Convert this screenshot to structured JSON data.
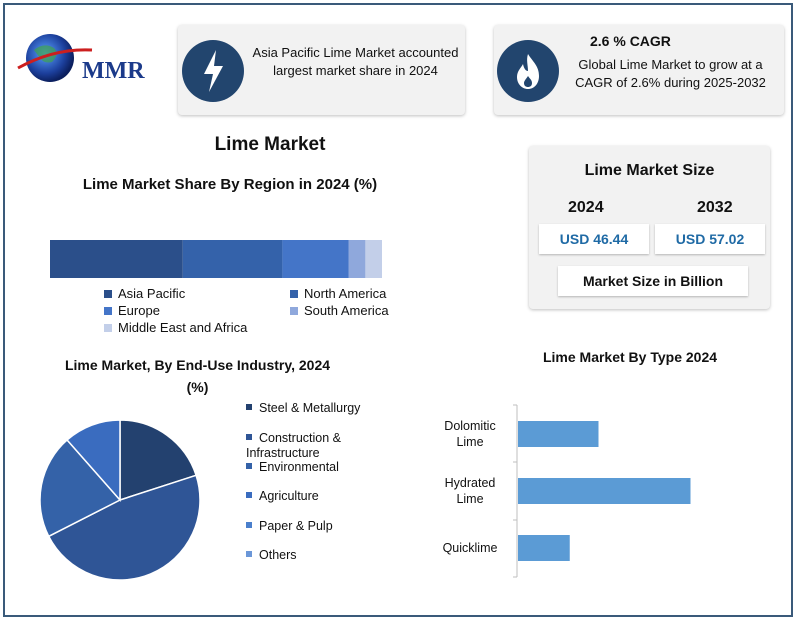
{
  "logo": {
    "text": "MMR"
  },
  "header": {
    "left_text": "Asia Pacific Lime Market accounted largest market share in 2024",
    "right_title": "2.6 % CAGR",
    "right_text": "Global Lime  Market to grow at a CAGR of 2.6% during 2025-2032",
    "left_icon": "lightning-bolt-icon",
    "right_icon": "flame-icon"
  },
  "main_title": "Lime Market",
  "market_size": {
    "title": "Lime Market Size",
    "year1": "2024",
    "year2": "2032",
    "value1": "USD 46.44",
    "value2": "USD 57.02",
    "unit_label": "Market Size in Billion",
    "accent": "#1f6aa5"
  },
  "chart_data": [
    {
      "type": "bar",
      "orientation": "horizontal-stacked",
      "title": "Lime Market Share By Region in 2024 (%)",
      "series": [
        {
          "name": "Asia Pacific",
          "values": [
            40
          ],
          "color": "#2b4f8a"
        },
        {
          "name": "North America",
          "values": [
            30
          ],
          "color": "#3462aa"
        },
        {
          "name": "Europe",
          "values": [
            20
          ],
          "color": "#4475c8"
        },
        {
          "name": "South America",
          "values": [
            5
          ],
          "color": "#8fa8dc"
        },
        {
          "name": "Middle East and Africa",
          "values": [
            5
          ],
          "color": "#c3cfe9"
        }
      ]
    },
    {
      "type": "pie",
      "title": "Lime Market, By End-Use Industry, 2024 (%)",
      "categories": [
        "Steel & Metallurgy",
        "Construction & Infrastructure",
        "Environmental",
        "Agriculture",
        "Paper & Pulp",
        "Others"
      ],
      "values": [
        20,
        47.5,
        21,
        11.5,
        0,
        0
      ],
      "colors": [
        "#23416f",
        "#2f5596",
        "#3462a8",
        "#3a6cbf",
        "#4a7fcc",
        "#6b97d8"
      ]
    },
    {
      "type": "bar",
      "orientation": "horizontal",
      "title": "Lime Market By Type 2024",
      "categories": [
        "Dolomitic Lime",
        "Hydrated Lime",
        "Quicklime"
      ],
      "values": [
        14,
        30,
        9
      ],
      "xlim": [
        0,
        40
      ],
      "color": "#5b9bd5"
    }
  ]
}
